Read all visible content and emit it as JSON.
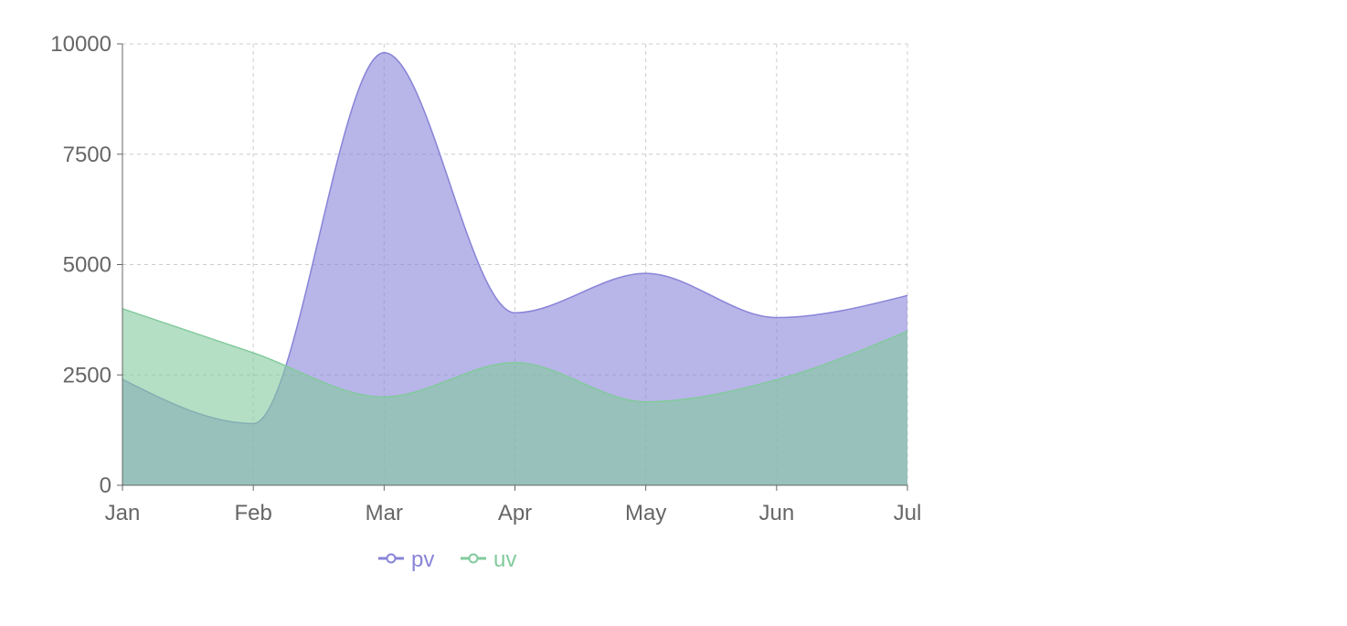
{
  "chart_data": {
    "type": "area",
    "categories": [
      "Jan",
      "Feb",
      "Mar",
      "Apr",
      "May",
      "Jun",
      "Jul"
    ],
    "series": [
      {
        "name": "pv",
        "values": [
          2400,
          1398,
          9800,
          3908,
          4800,
          3800,
          4300
        ],
        "color": "#8884d8"
      },
      {
        "name": "uv",
        "values": [
          4000,
          3000,
          2000,
          2780,
          1890,
          2390,
          3490
        ],
        "color": "#82ca9d"
      }
    ],
    "ylim": [
      0,
      10000
    ],
    "yticks": [
      0,
      2500,
      5000,
      7500,
      10000
    ],
    "grid": true,
    "curve": "monotone",
    "legend": "bottom"
  }
}
